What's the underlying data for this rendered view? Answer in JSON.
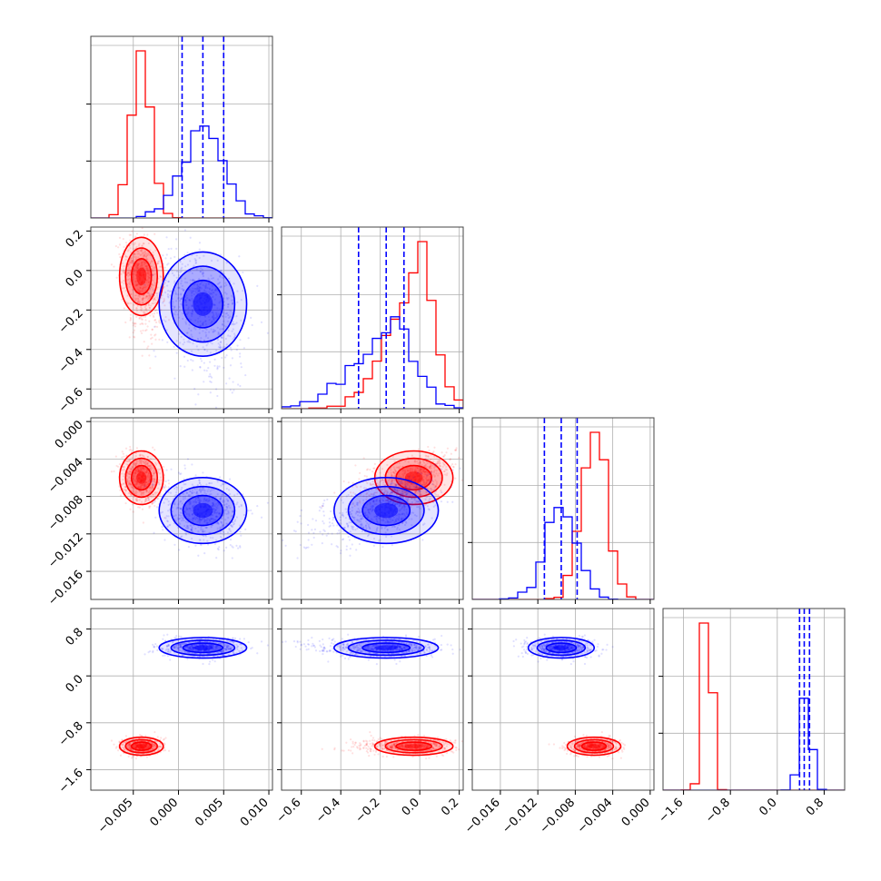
{
  "chart_data": {
    "type": "corner-plot",
    "description_of_layout": "lower-triangular",
    "parameters": 4,
    "colors": {
      "red": "#ff0000",
      "blue": "#0000ff",
      "grid": "#b0b0b0",
      "axis": "#444444"
    },
    "series": [
      {
        "color": "#ff0000",
        "means": [
          -0.0041,
          -0.03,
          -0.006,
          -1.2
        ],
        "sds": [
          0.0011,
          0.09,
          0.0013,
          0.07
        ],
        "quantiles": null
      },
      {
        "color": "#0000ff",
        "means": [
          0.0027,
          -0.17,
          -0.0095,
          0.48
        ],
        "sds": [
          0.0022,
          0.12,
          0.0016,
          0.08
        ],
        "quantiles": [
          [
            0.0004,
            0.0027,
            0.005
          ],
          [
            -0.31,
            -0.17,
            -0.08
          ],
          [
            -0.0113,
            -0.0095,
            -0.0078
          ],
          [
            0.38,
            0.46,
            0.55
          ]
        ]
      }
    ],
    "ranges": [
      [
        -0.0097,
        0.0104
      ],
      [
        -0.7,
        0.22
      ],
      [
        -0.019,
        0.0004
      ],
      [
        -1.95,
        1.15
      ]
    ],
    "ticks": [
      {
        "values": [
          -0.005,
          0.0,
          0.005,
          0.01
        ],
        "labels": [
          "−0.005",
          "0.000",
          "0.005",
          "0.010"
        ]
      },
      {
        "values": [
          -0.6,
          -0.4,
          -0.2,
          0.0,
          0.2
        ],
        "labels": [
          "−0.6",
          "−0.4",
          "−0.2",
          "0.0",
          "0.2"
        ]
      },
      {
        "values": [
          -0.016,
          -0.012,
          -0.008,
          -0.004,
          0.0
        ],
        "labels": [
          "−0.016",
          "−0.012",
          "−0.008",
          "−0.004",
          "0.000"
        ]
      },
      {
        "values": [
          -1.6,
          -0.8,
          0.0,
          0.8
        ],
        "labels": [
          "−1.6",
          "−0.8",
          "0.0",
          "0.8"
        ]
      }
    ],
    "y_ticks_left": [
      null,
      {
        "values": [
          0.2,
          0.0,
          -0.2,
          -0.4,
          -0.6
        ],
        "labels": [
          "0.2",
          "0.0",
          "−0.2",
          "−0.4",
          "−0.6"
        ]
      },
      {
        "values": [
          0.0,
          -0.004,
          -0.008,
          -0.012,
          -0.016
        ],
        "labels": [
          "0.000",
          "−0.004",
          "−0.008",
          "−0.012",
          "−0.016"
        ]
      },
      {
        "values": [
          0.8,
          0.0,
          -0.8,
          -1.6
        ],
        "labels": [
          "0.8",
          "0.0",
          "−0.8",
          "−1.6"
        ]
      }
    ],
    "grid": true
  }
}
